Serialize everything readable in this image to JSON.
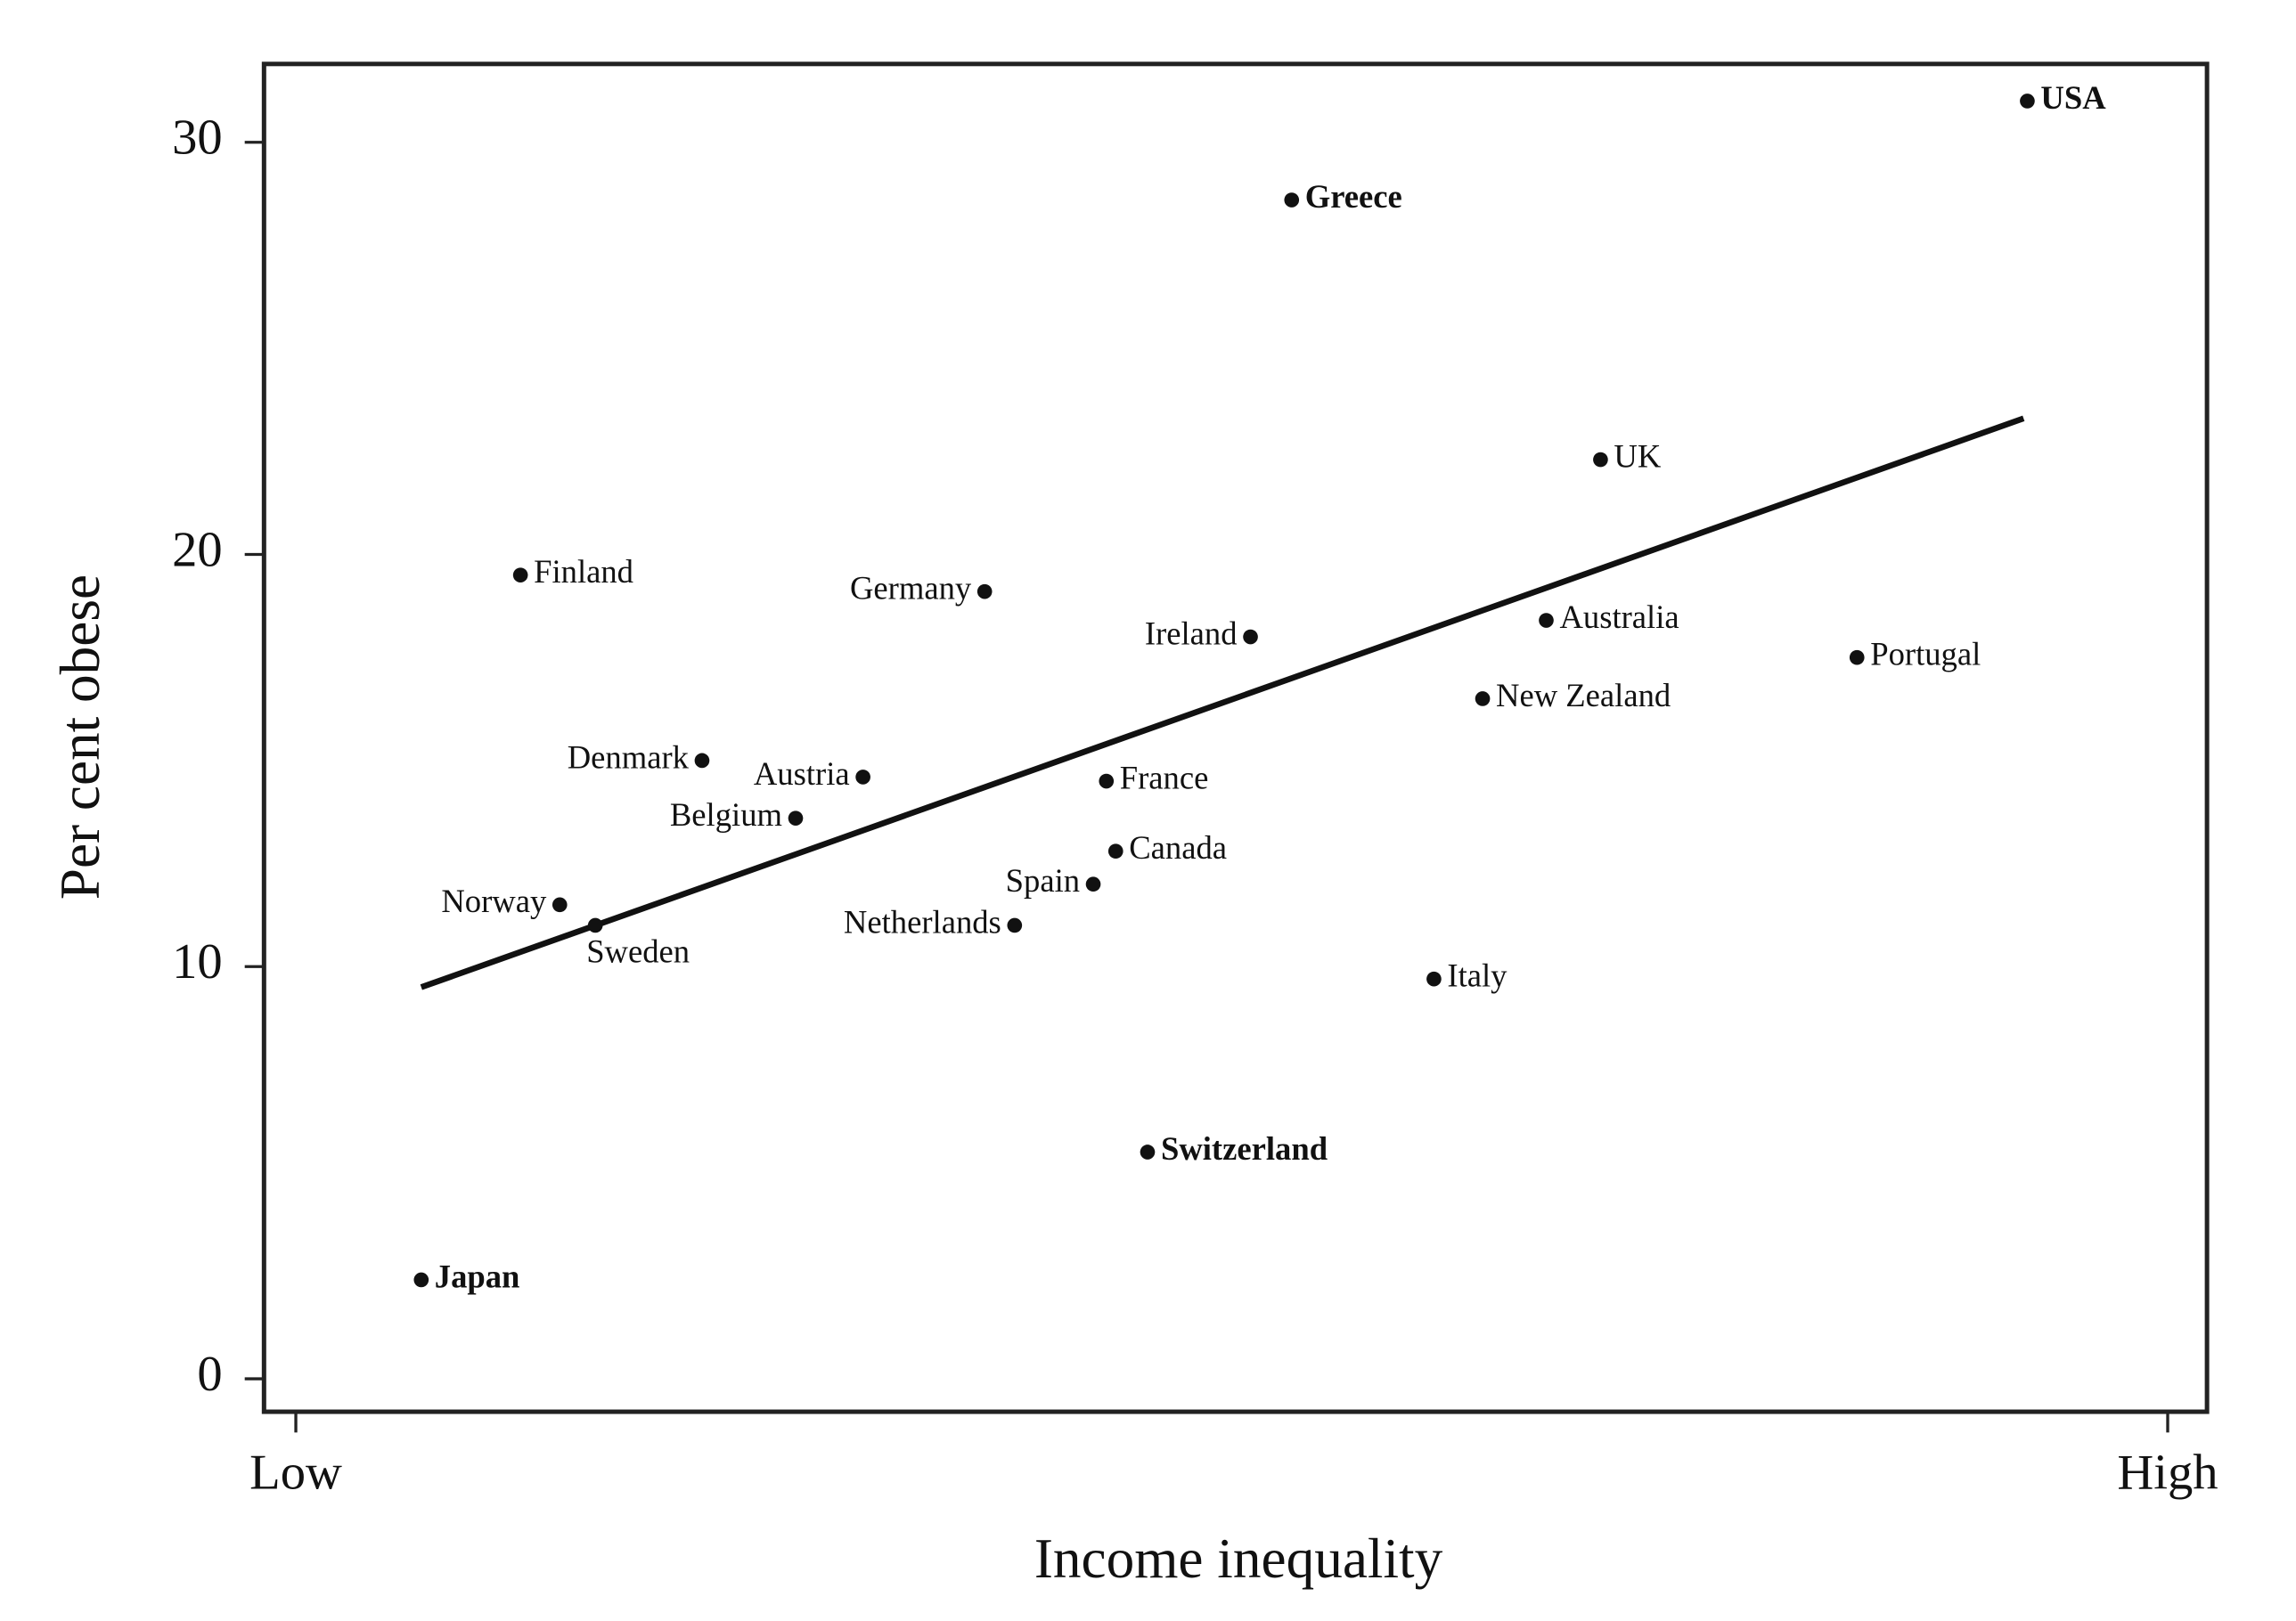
{
  "chart_data": {
    "type": "scatter",
    "x_label": "Income inequality",
    "y_label": "Per cent obese",
    "labels": [
      "USA",
      "Greece",
      "UK",
      "Finland",
      "Germany",
      "Ireland",
      "Australia",
      "Portugal",
      "New Zealand",
      "Denmark",
      "Austria",
      "France",
      "Belgium",
      "Canada",
      "Spain",
      "Norway",
      "Sweden",
      "Netherlands",
      "Italy",
      "Switzerland",
      "Japan"
    ],
    "x": [
      0.925,
      0.532,
      0.697,
      0.12,
      0.368,
      0.51,
      0.668,
      0.834,
      0.634,
      0.217,
      0.303,
      0.433,
      0.267,
      0.438,
      0.426,
      0.141,
      0.16,
      0.384,
      0.608,
      0.455,
      0.067
    ],
    "y": [
      31.0,
      28.6,
      22.3,
      19.5,
      19.1,
      18.0,
      18.4,
      17.5,
      16.5,
      15.0,
      14.6,
      14.5,
      13.6,
      12.8,
      12.0,
      11.5,
      11.0,
      11.0,
      9.7,
      5.5,
      2.4
    ],
    "color": "#111111",
    "trendline": {
      "x": [
        0.067,
        0.923
      ],
      "y": [
        9.5,
        23.3
      ]
    },
    "xlim": [
      -0.017,
      1.021
    ],
    "ylim": [
      -0.8,
      31.9
    ],
    "xticks": [
      {
        "value": 0,
        "label": "Low"
      },
      {
        "value": 1,
        "label": "High"
      }
    ],
    "yticks": [
      0,
      10,
      20,
      30
    ]
  }
}
